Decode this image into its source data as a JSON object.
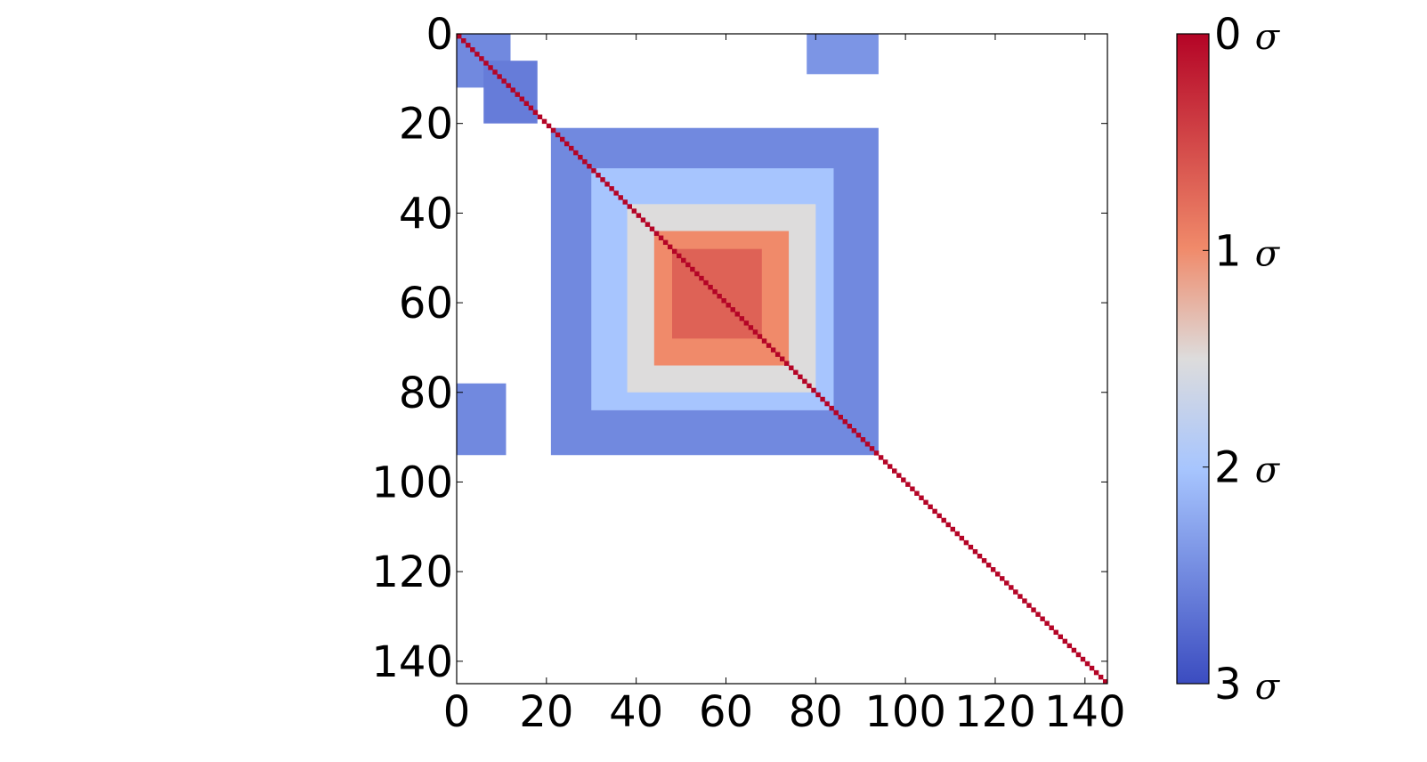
{
  "chart_data": {
    "type": "heatmap",
    "title": "",
    "xlabel": "",
    "ylabel": "",
    "n": 145,
    "xlim": [
      0,
      145
    ],
    "ylim": [
      145,
      0
    ],
    "x_ticks": [
      0,
      20,
      40,
      60,
      80,
      100,
      120,
      140
    ],
    "x_tick_labels": [
      "0",
      "20",
      "40",
      "60",
      "80",
      "100",
      "120",
      "140"
    ],
    "y_ticks": [
      0,
      20,
      40,
      60,
      80,
      100,
      120,
      140
    ],
    "y_tick_labels": [
      "0",
      "20",
      "40",
      "60",
      "80",
      "100",
      "120",
      "140"
    ],
    "colormap": "coolwarm (reversed)",
    "color_stops": [
      "#b40426",
      "#f08a6a",
      "#dddcdc",
      "#a7c5fe",
      "#3b4cc0"
    ],
    "colorbar": {
      "range": [
        0,
        3
      ],
      "ticks": [
        0,
        1,
        2,
        3
      ],
      "tick_labels": [
        "0",
        "1",
        "2",
        "3"
      ],
      "unit": "σ"
    },
    "regions": [
      {
        "x": [
          0,
          12
        ],
        "y": [
          0,
          12
        ],
        "sigma": 2.5
      },
      {
        "x": [
          6,
          18
        ],
        "y": [
          6,
          20
        ],
        "sigma": 2.6
      },
      {
        "x": [
          78,
          94
        ],
        "y": [
          0,
          9
        ],
        "sigma": 2.4
      },
      {
        "x": [
          0,
          11
        ],
        "y": [
          78,
          94
        ],
        "sigma": 2.5
      },
      {
        "x": [
          21,
          94
        ],
        "y": [
          21,
          94
        ],
        "sigma": 2.5
      },
      {
        "x": [
          30,
          84
        ],
        "y": [
          30,
          84
        ],
        "sigma": 2.0
      },
      {
        "x": [
          38,
          80
        ],
        "y": [
          38,
          80
        ],
        "sigma": 1.5
      },
      {
        "x": [
          44,
          74
        ],
        "y": [
          44,
          74
        ],
        "sigma": 1.0
      },
      {
        "x": [
          48,
          68
        ],
        "y": [
          48,
          68
        ],
        "sigma": 0.7
      }
    ],
    "diagonal_sigma": 0
  }
}
